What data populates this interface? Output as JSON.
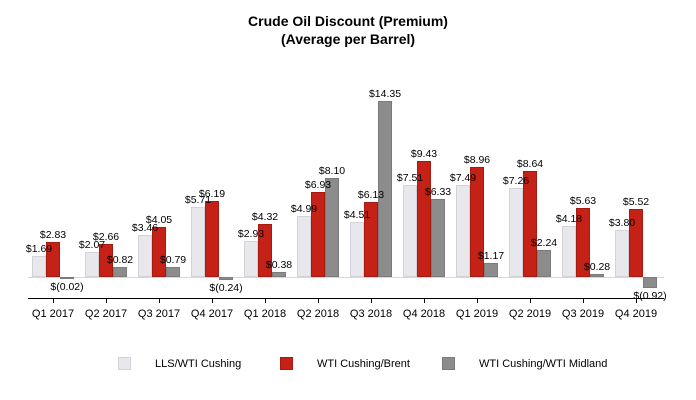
{
  "title": {
    "line1": "Crude Oil Discount (Premium)",
    "line2": "(Average per Barrel)"
  },
  "chart_data": {
    "type": "bar",
    "title": "Crude Oil Discount (Premium) (Average per Barrel)",
    "xlabel": "",
    "ylabel": "",
    "ylim": [
      -1.8,
      15.5
    ],
    "grid": false,
    "legend_position": "bottom",
    "categories": [
      "Q1 2017",
      "Q2 2017",
      "Q3 2017",
      "Q4 2017",
      "Q1 2018",
      "Q2 2018",
      "Q3 2018",
      "Q4 2018",
      "Q1 2019",
      "Q2 2019",
      "Q3 2019",
      "Q4 2019"
    ],
    "series": [
      {
        "name": "LLS/WTI Cushing",
        "color": "#e7e7ec",
        "border_color": "#d2d2da",
        "values": [
          1.69,
          2.07,
          3.46,
          5.71,
          2.93,
          4.99,
          4.51,
          7.51,
          7.49,
          7.26,
          4.18,
          3.8
        ],
        "labels": [
          "$1.69",
          "$2.07",
          "$3.46",
          "$5.71",
          "$2.93",
          "$4.99",
          "$4.51",
          "$7.51",
          "$7.49",
          "$7.26",
          "$4.18",
          "$3.80"
        ]
      },
      {
        "name": "WTI Cushing/Brent",
        "color": "#c52116",
        "border_color": "#a61b10",
        "values": [
          2.83,
          2.66,
          4.05,
          6.19,
          4.32,
          6.93,
          6.13,
          9.43,
          8.96,
          8.64,
          5.63,
          5.52
        ],
        "labels": [
          "$2.83",
          "$2.66",
          "$4.05",
          "$6.19",
          "$4.32",
          "$6.93",
          "$6.13",
          "$9.43",
          "$8.96",
          "$8.64",
          "$5.63",
          "$5.52"
        ]
      },
      {
        "name": "WTI Cushing/WTI Midland",
        "color": "#8c8c8c",
        "border_color": "#7b7b7b",
        "values": [
          -0.02,
          0.82,
          0.79,
          -0.24,
          0.38,
          8.1,
          14.35,
          6.33,
          1.17,
          2.24,
          0.28,
          -0.92
        ],
        "labels": [
          "$(0.02)",
          "$0.82",
          "$0.79",
          "$(0.24)",
          "$0.38",
          "$8.10",
          "$14.35",
          "$6.33",
          "$1.17",
          "$2.24",
          "$0.28",
          "$(0.92)"
        ]
      }
    ]
  }
}
